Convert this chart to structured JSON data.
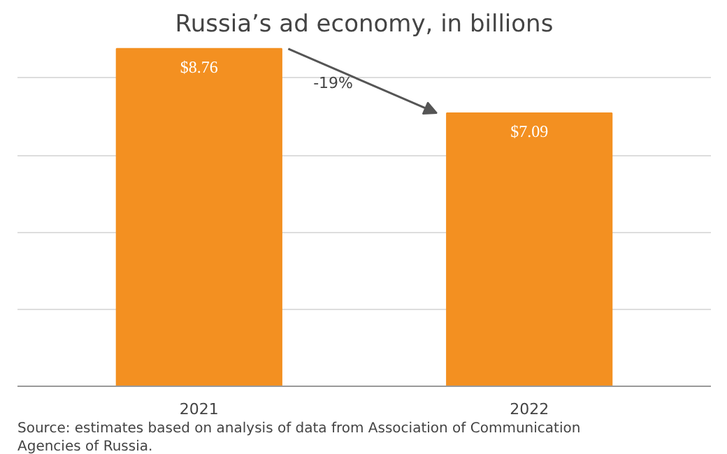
{
  "chart_data": {
    "type": "bar",
    "title": "Russia’s ad economy, in billions",
    "categories": [
      "2021",
      "2022"
    ],
    "values": [
      8.76,
      7.09
    ],
    "color": "#f39021",
    "value_labels": [
      "$8.76",
      "$7.09"
    ],
    "yticks": [
      {
        "value": 0,
        "label": null
      },
      {
        "value": 2,
        "label": null
      },
      {
        "value": 4,
        "label": null
      },
      {
        "value": 6,
        "label": null
      },
      {
        "value": 8,
        "label": null
      }
    ],
    "tick_labels": "x",
    "grid": "y",
    "annotations": [
      "-19%",
      "Source: estimates based on analysis of data from Association of Communication Agencies of Russia."
    ]
  }
}
